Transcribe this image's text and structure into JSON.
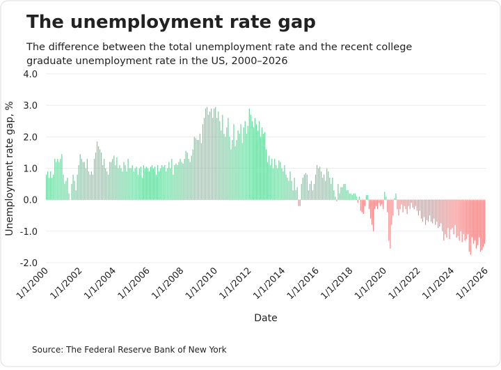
{
  "chart_data": {
    "type": "bar",
    "title": "The unemployment rate gap",
    "subtitle": [
      "The difference between the total unemployment rate and the recent college",
      "graduate unemployment rate in the US, 2000–2026"
    ],
    "x_label": "Date",
    "y_label": "Unemployment rate gap, %",
    "source": "Source: The Federal Reserve Bank of New York",
    "positive_color": "#6fd3a0",
    "negative_color": "#f08a8a",
    "grid": true,
    "ylim": [
      -2,
      4
    ],
    "yticks": [
      {
        "value": -2,
        "label": "-2.0"
      },
      {
        "value": -1,
        "label": "-1.0"
      },
      {
        "value": 0,
        "label": "0.0"
      },
      {
        "value": 1,
        "label": "1.0"
      },
      {
        "value": 2,
        "label": "2.0"
      },
      {
        "value": 3,
        "label": "3.0"
      },
      {
        "value": 4,
        "label": "4.0"
      }
    ],
    "xlim": [
      "1/1/2000",
      "1/1/2026"
    ],
    "xticks": [
      "1/1/2000",
      "1/1/2002",
      "1/1/2004",
      "1/1/2006",
      "1/1/2008",
      "1/1/2010",
      "1/1/2012",
      "1/1/2014",
      "1/1/2016",
      "1/1/2018",
      "1/1/2020",
      "1/1/2022",
      "1/1/2024",
      "1/1/2026"
    ],
    "x": [
      "1/1/2000",
      "2/1/2000",
      "3/1/2000",
      "4/1/2000",
      "5/1/2000",
      "6/1/2000",
      "7/1/2000",
      "8/1/2000",
      "9/1/2000",
      "10/1/2000",
      "11/1/2000",
      "12/1/2000",
      "1/1/2001",
      "2/1/2001",
      "3/1/2001",
      "4/1/2001",
      "5/1/2001",
      "6/1/2001",
      "7/1/2001",
      "8/1/2001",
      "9/1/2001",
      "10/1/2001",
      "11/1/2001",
      "12/1/2001",
      "1/1/2002",
      "2/1/2002",
      "3/1/2002",
      "4/1/2002",
      "5/1/2002",
      "6/1/2002",
      "7/1/2002",
      "8/1/2002",
      "9/1/2002",
      "10/1/2002",
      "11/1/2002",
      "12/1/2002",
      "1/1/2003",
      "2/1/2003",
      "3/1/2003",
      "4/1/2003",
      "5/1/2003",
      "6/1/2003",
      "7/1/2003",
      "8/1/2003",
      "9/1/2003",
      "10/1/2003",
      "11/1/2003",
      "12/1/2003",
      "1/1/2004",
      "2/1/2004",
      "3/1/2004",
      "4/1/2004",
      "5/1/2004",
      "6/1/2004",
      "7/1/2004",
      "8/1/2004",
      "9/1/2004",
      "10/1/2004",
      "11/1/2004",
      "12/1/2004",
      "1/1/2005",
      "2/1/2005",
      "3/1/2005",
      "4/1/2005",
      "5/1/2005",
      "6/1/2005",
      "7/1/2005",
      "8/1/2005",
      "9/1/2005",
      "10/1/2005",
      "11/1/2005",
      "12/1/2005",
      "1/1/2006",
      "2/1/2006",
      "3/1/2006",
      "4/1/2006",
      "5/1/2006",
      "6/1/2006",
      "7/1/2006",
      "8/1/2006",
      "9/1/2006",
      "10/1/2006",
      "11/1/2006",
      "12/1/2006",
      "1/1/2007",
      "2/1/2007",
      "3/1/2007",
      "4/1/2007",
      "5/1/2007",
      "6/1/2007",
      "7/1/2007",
      "8/1/2007",
      "9/1/2007",
      "10/1/2007",
      "11/1/2007",
      "12/1/2007",
      "1/1/2008",
      "2/1/2008",
      "3/1/2008",
      "4/1/2008",
      "5/1/2008",
      "6/1/2008",
      "7/1/2008",
      "8/1/2008",
      "9/1/2008",
      "10/1/2008",
      "11/1/2008",
      "12/1/2008",
      "1/1/2009",
      "2/1/2009",
      "3/1/2009",
      "4/1/2009",
      "5/1/2009",
      "6/1/2009",
      "7/1/2009",
      "8/1/2009",
      "9/1/2009",
      "10/1/2009",
      "11/1/2009",
      "12/1/2009",
      "1/1/2010",
      "2/1/2010",
      "3/1/2010",
      "4/1/2010",
      "5/1/2010",
      "6/1/2010",
      "7/1/2010",
      "8/1/2010",
      "9/1/2010",
      "10/1/2010",
      "11/1/2010",
      "12/1/2010",
      "1/1/2011",
      "2/1/2011",
      "3/1/2011",
      "4/1/2011",
      "5/1/2011",
      "6/1/2011",
      "7/1/2011",
      "8/1/2011",
      "9/1/2011",
      "10/1/2011",
      "11/1/2011",
      "12/1/2011",
      "1/1/2012",
      "2/1/2012",
      "3/1/2012",
      "4/1/2012",
      "5/1/2012",
      "6/1/2012",
      "7/1/2012",
      "8/1/2012",
      "9/1/2012",
      "10/1/2012",
      "11/1/2012",
      "12/1/2012",
      "1/1/2013",
      "2/1/2013",
      "3/1/2013",
      "4/1/2013",
      "5/1/2013",
      "6/1/2013",
      "7/1/2013",
      "8/1/2013",
      "9/1/2013",
      "10/1/2013",
      "11/1/2013",
      "12/1/2013",
      "1/1/2014",
      "2/1/2014",
      "3/1/2014",
      "4/1/2014",
      "5/1/2014",
      "6/1/2014",
      "7/1/2014",
      "8/1/2014",
      "9/1/2014",
      "10/1/2014",
      "11/1/2014",
      "12/1/2014",
      "1/1/2015",
      "2/1/2015",
      "3/1/2015",
      "4/1/2015",
      "5/1/2015",
      "6/1/2015",
      "7/1/2015",
      "8/1/2015",
      "9/1/2015",
      "10/1/2015",
      "11/1/2015",
      "12/1/2015",
      "1/1/2016",
      "2/1/2016",
      "3/1/2016",
      "4/1/2016",
      "5/1/2016",
      "6/1/2016",
      "7/1/2016",
      "8/1/2016",
      "9/1/2016",
      "10/1/2016",
      "11/1/2016",
      "12/1/2016",
      "1/1/2017",
      "2/1/2017",
      "3/1/2017",
      "4/1/2017",
      "5/1/2017",
      "6/1/2017",
      "7/1/2017",
      "8/1/2017",
      "9/1/2017",
      "10/1/2017",
      "11/1/2017",
      "12/1/2017",
      "1/1/2018",
      "2/1/2018",
      "3/1/2018",
      "4/1/2018",
      "5/1/2018",
      "6/1/2018",
      "7/1/2018",
      "8/1/2018",
      "9/1/2018",
      "10/1/2018",
      "11/1/2018",
      "12/1/2018",
      "1/1/2019",
      "2/1/2019",
      "3/1/2019",
      "4/1/2019",
      "5/1/2019",
      "6/1/2019",
      "7/1/2019",
      "8/1/2019",
      "9/1/2019",
      "10/1/2019",
      "11/1/2019",
      "12/1/2019",
      "1/1/2020",
      "2/1/2020",
      "3/1/2020",
      "4/1/2020",
      "5/1/2020",
      "6/1/2020",
      "7/1/2020",
      "8/1/2020",
      "9/1/2020",
      "10/1/2020",
      "11/1/2020",
      "12/1/2020",
      "1/1/2021",
      "2/1/2021",
      "3/1/2021",
      "4/1/2021",
      "5/1/2021",
      "6/1/2021",
      "7/1/2021",
      "8/1/2021",
      "9/1/2021",
      "10/1/2021",
      "11/1/2021",
      "12/1/2021",
      "1/1/2022",
      "2/1/2022",
      "3/1/2022",
      "4/1/2022",
      "5/1/2022",
      "6/1/2022",
      "7/1/2022",
      "8/1/2022",
      "9/1/2022",
      "10/1/2022",
      "11/1/2022",
      "12/1/2022",
      "1/1/2023",
      "2/1/2023",
      "3/1/2023",
      "4/1/2023",
      "5/1/2023",
      "6/1/2023",
      "7/1/2023",
      "8/1/2023",
      "9/1/2023",
      "10/1/2023",
      "11/1/2023",
      "12/1/2023",
      "1/1/2024",
      "2/1/2024",
      "3/1/2024",
      "4/1/2024",
      "5/1/2024",
      "6/1/2024",
      "7/1/2024",
      "8/1/2024",
      "9/1/2024",
      "10/1/2024",
      "11/1/2024",
      "12/1/2024",
      "1/1/2025",
      "2/1/2025",
      "3/1/2025",
      "4/1/2025",
      "5/1/2025",
      "6/1/2025",
      "7/1/2025",
      "8/1/2025",
      "9/1/2025",
      "10/1/2025",
      "11/1/2025",
      "12/1/2025"
    ],
    "values": [
      0.8,
      0.9,
      0.7,
      0.9,
      0.7,
      0.8,
      1.3,
      1.2,
      1.3,
      1.2,
      1.3,
      1.45,
      0.8,
      0.5,
      0.6,
      0.7,
      0.2,
      0.0,
      0.5,
      0.8,
      0.6,
      0.3,
      0.8,
      1.1,
      1.45,
      1.3,
      1.2,
      1.2,
      1.0,
      1.3,
      0.9,
      0.8,
      0.9,
      0.8,
      1.3,
      1.5,
      1.85,
      1.7,
      1.6,
      1.5,
      1.1,
      1.3,
      1.0,
      0.9,
      0.8,
      1.2,
      1.2,
      1.3,
      1.4,
      1.1,
      1.35,
      1.0,
      1.1,
      1.0,
      0.9,
      1.2,
      1.1,
      0.9,
      1.3,
      1.0,
      1.0,
      1.1,
      0.9,
      1.0,
      1.05,
      0.8,
      1.0,
      1.05,
      0.7,
      1.1,
      1.0,
      1.05,
      1.0,
      0.9,
      1.05,
      1.1,
      1.0,
      1.05,
      0.8,
      1.1,
      0.9,
      1.0,
      1.1,
      1.05,
      1.1,
      0.9,
      1.0,
      1.2,
      1.0,
      1.3,
      0.8,
      1.1,
      1.15,
      1.1,
      1.2,
      1.3,
      1.2,
      1.15,
      1.3,
      1.55,
      1.5,
      1.3,
      1.2,
      1.4,
      1.6,
      2.0,
      1.95,
      1.9,
      1.9,
      2.1,
      1.8,
      2.4,
      2.6,
      2.9,
      2.95,
      2.7,
      2.8,
      2.9,
      2.6,
      2.9,
      2.95,
      2.6,
      2.8,
      2.5,
      2.2,
      2.7,
      2.1,
      2.0,
      2.3,
      2.6,
      2.0,
      1.6,
      1.9,
      2.4,
      1.7,
      1.9,
      2.2,
      2.1,
      2.4,
      1.8,
      2.3,
      2.5,
      2.1,
      2.35,
      2.9,
      2.7,
      2.5,
      2.3,
      2.6,
      2.4,
      2.2,
      2.5,
      2.0,
      2.3,
      2.1,
      2.15,
      1.6,
      1.2,
      1.4,
      1.1,
      1.3,
      1.0,
      1.3,
      1.1,
      1.0,
      1.25,
      1.2,
      1.0,
      0.9,
      1.1,
      0.8,
      0.7,
      0.6,
      0.9,
      0.6,
      0.3,
      0.7,
      0.3,
      0.4,
      -0.2,
      -0.2,
      0.5,
      0.7,
      0.8,
      0.85,
      0.8,
      0.3,
      0.5,
      0.6,
      0.3,
      0.5,
      0.8,
      1.1,
      1.0,
      1.05,
      0.9,
      0.7,
      0.8,
      0.6,
      1.0,
      0.9,
      0.7,
      0.5,
      0.7,
      0.3,
      0.1,
      -0.05,
      0.5,
      0.2,
      0.4,
      0.4,
      0.5,
      0.5,
      0.3,
      0.3,
      0.2,
      0.2,
      0.15,
      0.2,
      0.2,
      0.1,
      -0.1,
      0.1,
      -0.35,
      -0.4,
      -0.45,
      -0.2,
      0.15,
      0.15,
      -0.3,
      -0.6,
      -0.8,
      -1.0,
      -0.3,
      -0.2,
      -0.3,
      -0.1,
      -0.2,
      -0.15,
      -0.3,
      0.25,
      0.1,
      -0.4,
      -1.3,
      -1.55,
      -0.8,
      -0.5,
      0.05,
      0.2,
      -0.3,
      -0.5,
      -0.3,
      -0.15,
      -0.4,
      -0.2,
      -0.3,
      -0.45,
      -0.2,
      -0.3,
      -0.1,
      -0.25,
      -0.3,
      -0.2,
      -0.35,
      -0.5,
      -0.35,
      -0.6,
      -0.7,
      -0.55,
      -0.8,
      -0.65,
      -0.7,
      -0.5,
      -0.7,
      -0.75,
      -0.6,
      -0.8,
      -0.7,
      -0.9,
      -0.85,
      -0.75,
      -1.0,
      -1.3,
      -1.1,
      -1.2,
      -0.9,
      -1.25,
      -0.95,
      -0.9,
      -1.1,
      -0.8,
      -1.2,
      -1.15,
      -1.3,
      -1.0,
      -1.35,
      -1.1,
      -1.3,
      -1.25,
      -1.1,
      -1.65,
      -1.75,
      -1.2,
      -1.4,
      -1.3,
      -1.55,
      -1.45,
      -1.2,
      -1.65,
      -1.6,
      -1.5,
      -1.4
    ]
  }
}
